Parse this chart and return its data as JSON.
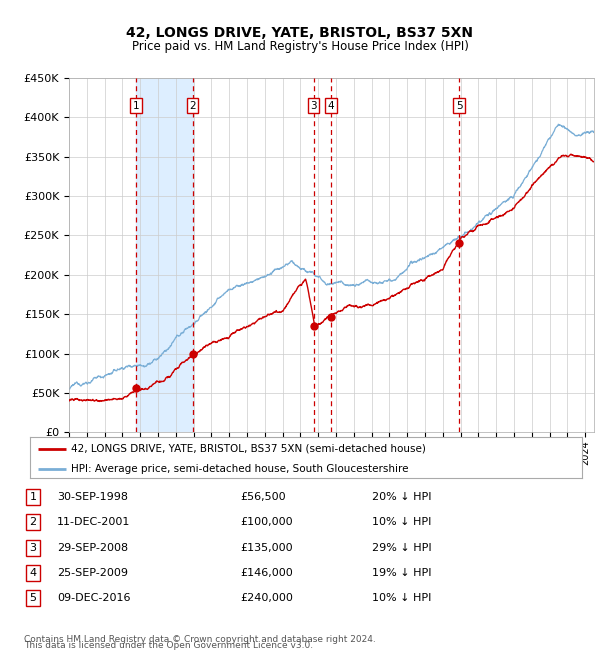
{
  "title": "42, LONGS DRIVE, YATE, BRISTOL, BS37 5XN",
  "subtitle": "Price paid vs. HM Land Registry's House Price Index (HPI)",
  "ylim": [
    0,
    450000
  ],
  "yticks": [
    0,
    50000,
    100000,
    150000,
    200000,
    250000,
    300000,
    350000,
    400000,
    450000
  ],
  "ytick_labels": [
    "£0",
    "£50K",
    "£100K",
    "£150K",
    "£200K",
    "£250K",
    "£300K",
    "£350K",
    "£400K",
    "£450K"
  ],
  "sale_dates_num": [
    1998.75,
    2001.94,
    2008.74,
    2009.73,
    2016.92
  ],
  "sale_prices": [
    56500,
    100000,
    135000,
    146000,
    240000
  ],
  "sale_labels": [
    "1",
    "2",
    "3",
    "4",
    "5"
  ],
  "sale_info": [
    [
      "1",
      "30-SEP-1998",
      "£56,500",
      "20% ↓ HPI"
    ],
    [
      "2",
      "11-DEC-2001",
      "£100,000",
      "10% ↓ HPI"
    ],
    [
      "3",
      "29-SEP-2008",
      "£135,000",
      "29% ↓ HPI"
    ],
    [
      "4",
      "25-SEP-2009",
      "£146,000",
      "19% ↓ HPI"
    ],
    [
      "5",
      "09-DEC-2016",
      "£240,000",
      "10% ↓ HPI"
    ]
  ],
  "shaded_regions": [
    [
      1998.75,
      2001.94
    ]
  ],
  "red_line_color": "#cc0000",
  "blue_line_color": "#7aaed6",
  "shade_color": "#ddeeff",
  "dashed_color": "#cc0000",
  "legend_line1": "42, LONGS DRIVE, YATE, BRISTOL, BS37 5XN (semi-detached house)",
  "legend_line2": "HPI: Average price, semi-detached house, South Gloucestershire",
  "footer1": "Contains HM Land Registry data © Crown copyright and database right 2024.",
  "footer2": "This data is licensed under the Open Government Licence v3.0.",
  "xstart": 1995.0,
  "xend": 2024.5
}
